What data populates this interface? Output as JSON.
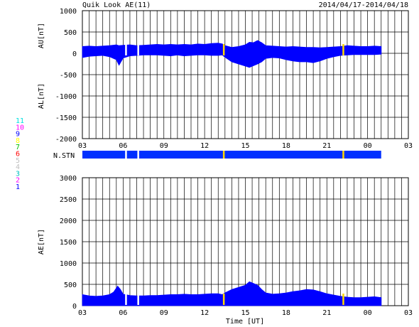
{
  "header": {
    "title": "Quik Look AE(11)",
    "date_range": "2014/04/17-2014/04/18"
  },
  "panel_top": {
    "ylabel_upper": "AU[nT]",
    "ylabel_lower": "AL[nT]",
    "yticks": [
      "1000",
      "500",
      "0",
      "-500",
      "-1000",
      "-1500",
      "-2000"
    ]
  },
  "nstn": {
    "label": "N.STN",
    "colors": [
      "#0000ff",
      "#1a1aff",
      "#ff2fff",
      "#ffff00"
    ],
    "bar_color": "#0030ff",
    "gap_color": "#ffd700"
  },
  "legend_stations": {
    "items": [
      {
        "label": "11",
        "color": "#00e0e0"
      },
      {
        "label": "10",
        "color": "#ff00ff"
      },
      {
        "label": "9",
        "color": "#0000ff"
      },
      {
        "label": "8",
        "color": "#ffff00"
      },
      {
        "label": "7",
        "color": "#00c000"
      },
      {
        "label": "6",
        "color": "#ff0000"
      },
      {
        "label": "5",
        "color": "#c0c0c0"
      },
      {
        "label": "4",
        "color": "#c0c0c0"
      },
      {
        "label": "3",
        "color": "#00c0c0"
      },
      {
        "label": "2",
        "color": "#ff00ff"
      },
      {
        "label": "1",
        "color": "#0000ff"
      }
    ]
  },
  "panel_bottom": {
    "ylabel": "AE[nT]",
    "yticks": [
      "3000",
      "2500",
      "2000",
      "1500",
      "1000",
      "500",
      "0"
    ]
  },
  "xaxis": {
    "ticks": [
      "03",
      "06",
      "09",
      "12",
      "15",
      "18",
      "21",
      "00",
      "03"
    ],
    "label": "Time [UT]"
  },
  "chart_data": [
    {
      "type": "area",
      "title": "Quik Look AE(11)",
      "xlabel": "",
      "ylabel": "AU[nT] / AL[nT]",
      "xlim": [
        3,
        27
      ],
      "ylim": [
        -2000,
        1000
      ],
      "grid": true,
      "series": [
        {
          "name": "AU",
          "color": "#0000ff",
          "x": [
            3.0,
            3.5,
            4.0,
            4.5,
            5.0,
            5.5,
            5.7,
            6.0,
            6.5,
            7.0,
            7.5,
            8.0,
            8.5,
            9.0,
            9.5,
            10.0,
            10.5,
            11.0,
            11.5,
            12.0,
            12.5,
            13.0,
            13.3,
            13.5,
            14.0,
            14.5,
            15.0,
            15.3,
            15.6,
            15.9,
            16.2,
            16.5,
            17.0,
            17.5,
            18.0,
            18.5,
            19.0,
            19.5,
            20.0,
            20.5,
            21.0,
            21.5,
            22.0,
            22.5,
            23.0,
            23.5,
            24.0,
            24.5,
            25.0
          ],
          "values": [
            160,
            170,
            160,
            170,
            180,
            200,
            180,
            190,
            200,
            180,
            190,
            200,
            210,
            200,
            210,
            200,
            210,
            200,
            220,
            210,
            230,
            240,
            220,
            180,
            140,
            160,
            200,
            260,
            250,
            300,
            250,
            180,
            170,
            160,
            150,
            160,
            150,
            140,
            140,
            130,
            140,
            150,
            160,
            180,
            170,
            160,
            160,
            170,
            160
          ]
        },
        {
          "name": "AL",
          "color": "#0000ff",
          "x": [
            3.0,
            3.5,
            4.0,
            4.5,
            5.0,
            5.5,
            5.7,
            6.0,
            6.5,
            7.0,
            7.5,
            8.0,
            8.5,
            9.0,
            9.5,
            10.0,
            10.5,
            11.0,
            11.5,
            12.0,
            12.5,
            13.0,
            13.3,
            13.5,
            14.0,
            14.5,
            15.0,
            15.3,
            15.6,
            15.9,
            16.2,
            16.5,
            17.0,
            17.5,
            18.0,
            18.5,
            19.0,
            19.5,
            20.0,
            20.5,
            21.0,
            21.5,
            22.0,
            22.5,
            23.0,
            23.5,
            24.0,
            24.5,
            25.0
          ],
          "values": [
            -100,
            -70,
            -60,
            -50,
            -80,
            -150,
            -280,
            -110,
            -60,
            -50,
            -40,
            -40,
            -40,
            -50,
            -60,
            -40,
            -60,
            -50,
            -40,
            -40,
            -50,
            -50,
            -40,
            -90,
            -200,
            -250,
            -300,
            -330,
            -290,
            -250,
            -200,
            -120,
            -100,
            -110,
            -150,
            -180,
            -200,
            -200,
            -220,
            -180,
            -120,
            -80,
            -50,
            -40,
            -30,
            -30,
            -30,
            -30,
            -20
          ]
        }
      ]
    },
    {
      "type": "area",
      "title": "",
      "xlabel": "Time [UT]",
      "ylabel": "AE[nT]",
      "xlim": [
        3,
        27
      ],
      "ylim": [
        0,
        3000
      ],
      "grid": true,
      "series": [
        {
          "name": "AE",
          "color": "#0000ff",
          "x": [
            3.0,
            3.5,
            4.0,
            4.5,
            5.0,
            5.3,
            5.6,
            5.8,
            6.0,
            6.5,
            7.0,
            7.5,
            8.0,
            8.5,
            9.0,
            9.5,
            10.0,
            10.5,
            11.0,
            11.5,
            12.0,
            12.5,
            13.0,
            13.3,
            13.5,
            14.0,
            14.5,
            15.0,
            15.3,
            15.6,
            15.9,
            16.2,
            16.5,
            17.0,
            17.5,
            18.0,
            18.5,
            19.0,
            19.5,
            20.0,
            20.5,
            21.0,
            21.5,
            22.0,
            22.5,
            23.0,
            23.5,
            24.0,
            24.5,
            25.0
          ],
          "values": [
            260,
            230,
            220,
            230,
            260,
            320,
            460,
            380,
            270,
            240,
            230,
            230,
            240,
            240,
            250,
            260,
            260,
            270,
            260,
            260,
            270,
            280,
            280,
            260,
            300,
            380,
            430,
            480,
            560,
            520,
            480,
            380,
            300,
            270,
            280,
            300,
            330,
            350,
            380,
            370,
            330,
            280,
            250,
            220,
            200,
            190,
            190,
            200,
            210,
            190
          ]
        }
      ]
    }
  ]
}
